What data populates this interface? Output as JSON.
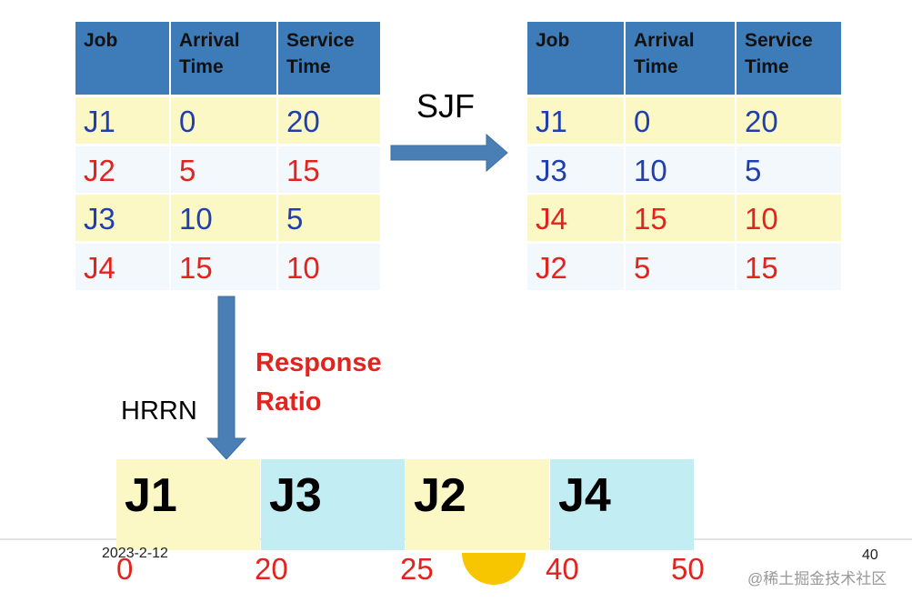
{
  "left_table": {
    "headers": [
      "Job",
      "Arrival Time",
      "Service Time"
    ],
    "rows": [
      {
        "cells": [
          "J1",
          "0",
          "20"
        ],
        "color": "#1f3fb0"
      },
      {
        "cells": [
          "J2",
          "5",
          "15"
        ],
        "color": "#e3231e"
      },
      {
        "cells": [
          "J3",
          "10",
          "5"
        ],
        "color": "#1f3fb0"
      },
      {
        "cells": [
          "J4",
          "15",
          "10"
        ],
        "color": "#e3231e"
      }
    ]
  },
  "sjf_label": "SJF",
  "right_table": {
    "headers": [
      "Job",
      "Arrival Time",
      "Service Time"
    ],
    "rows": [
      {
        "cells": [
          "J1",
          "0",
          "20"
        ],
        "color": "#1f3fb0"
      },
      {
        "cells": [
          "J3",
          "10",
          "5"
        ],
        "color": "#1f3fb0"
      },
      {
        "cells": [
          "J4",
          "15",
          "10"
        ],
        "color": "#e3231e"
      },
      {
        "cells": [
          "J2",
          "5",
          "15"
        ],
        "color": "#e3231e"
      }
    ]
  },
  "response_ratio_label": [
    "Response",
    "Ratio"
  ],
  "hrrn_label": "HRRN",
  "gantt": {
    "blocks": [
      {
        "label": "J1",
        "color": "#fbf8c6"
      },
      {
        "label": "J3",
        "color": "#c2eef3"
      },
      {
        "label": "J2",
        "color": "#fbf8c6"
      },
      {
        "label": "J4",
        "color": "#c2eef3"
      }
    ],
    "times": [
      "0",
      "20",
      "25",
      "40",
      "50"
    ]
  },
  "footer": {
    "date": "2023-2-12",
    "page": "40",
    "watermark": "@稀土掘金技术社区"
  }
}
